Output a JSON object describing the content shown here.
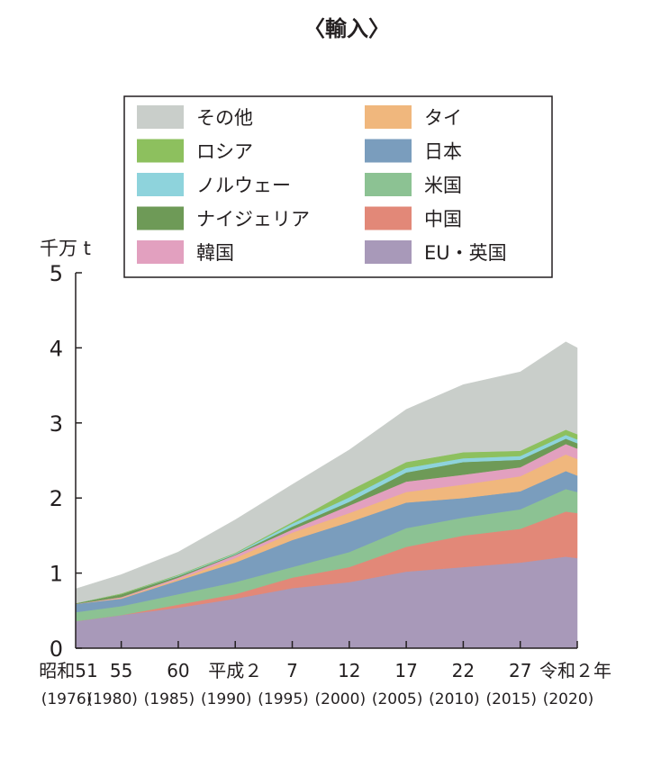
{
  "chart_data": {
    "type": "area",
    "stacked": true,
    "title": "〈輸入〉",
    "ylabel": "千万 t",
    "ylim": [
      0,
      5
    ],
    "yticks": [
      0,
      1,
      2,
      3,
      4,
      5
    ],
    "xlim": [
      1976,
      2020
    ],
    "x": [
      1976,
      1980,
      1985,
      1990,
      1995,
      2000,
      2005,
      2010,
      2015,
      2019,
      2020
    ],
    "xtick_labels": [
      {
        "year": 1976,
        "era": "昭和51",
        "western": "(1976)"
      },
      {
        "year": 1980,
        "era": "55",
        "western": "(1980)"
      },
      {
        "year": 1985,
        "era": "60",
        "western": "(1985)"
      },
      {
        "year": 1990,
        "era": "平成２",
        "western": "(1990)"
      },
      {
        "year": 1995,
        "era": "7",
        "western": "(1995)"
      },
      {
        "year": 2000,
        "era": "12",
        "western": "(2000)"
      },
      {
        "year": 2005,
        "era": "17",
        "western": "(2005)"
      },
      {
        "year": 2010,
        "era": "22",
        "western": "(2010)"
      },
      {
        "year": 2015,
        "era": "27",
        "western": "(2015)"
      },
      {
        "year": 2020,
        "era": "令和２年",
        "western": "(2020)"
      }
    ],
    "legend_position": "top-inside",
    "series": [
      {
        "name": "EU・英国",
        "color": "#a899b9",
        "values": [
          0.36,
          0.44,
          0.54,
          0.66,
          0.8,
          0.88,
          1.02,
          1.08,
          1.14,
          1.22,
          1.2
        ]
      },
      {
        "name": "中国",
        "color": "#e28878",
        "values": [
          0.0,
          0.0,
          0.04,
          0.06,
          0.14,
          0.2,
          0.33,
          0.42,
          0.45,
          0.6,
          0.6
        ]
      },
      {
        "name": "米国",
        "color": "#8cc293",
        "values": [
          0.12,
          0.12,
          0.14,
          0.16,
          0.14,
          0.2,
          0.25,
          0.24,
          0.26,
          0.3,
          0.28
        ]
      },
      {
        "name": "日本",
        "color": "#7a9dbd",
        "values": [
          0.11,
          0.1,
          0.18,
          0.26,
          0.36,
          0.4,
          0.34,
          0.26,
          0.24,
          0.24,
          0.22
        ]
      },
      {
        "name": "タイ",
        "color": "#f0b77d",
        "values": [
          0.0,
          0.01,
          0.02,
          0.06,
          0.1,
          0.12,
          0.14,
          0.18,
          0.2,
          0.22,
          0.22
        ]
      },
      {
        "name": "韓国",
        "color": "#e2a0bf",
        "values": [
          0.0,
          0.01,
          0.02,
          0.04,
          0.04,
          0.1,
          0.14,
          0.13,
          0.12,
          0.14,
          0.14
        ]
      },
      {
        "name": "ナイジェリア",
        "color": "#6e9a57",
        "values": [
          0.01,
          0.04,
          0.02,
          0.01,
          0.04,
          0.05,
          0.12,
          0.17,
          0.1,
          0.07,
          0.07
        ]
      },
      {
        "name": "ノルウェー",
        "color": "#8ed3dc",
        "values": [
          0.0,
          0.0,
          0.01,
          0.01,
          0.04,
          0.06,
          0.06,
          0.05,
          0.05,
          0.05,
          0.05
        ]
      },
      {
        "name": "ロシア",
        "color": "#8dc05e",
        "values": [
          0.0,
          0.01,
          0.01,
          0.01,
          0.02,
          0.09,
          0.08,
          0.08,
          0.07,
          0.07,
          0.07
        ]
      },
      {
        "name": "その他",
        "color": "#c9ceca",
        "values": [
          0.19,
          0.25,
          0.3,
          0.44,
          0.5,
          0.54,
          0.7,
          0.9,
          1.05,
          1.17,
          1.15
        ]
      }
    ],
    "legend_order": [
      "その他",
      "ロシア",
      "ノルウェー",
      "ナイジェリア",
      "韓国",
      "タイ",
      "日本",
      "米国",
      "中国",
      "EU・英国"
    ]
  }
}
